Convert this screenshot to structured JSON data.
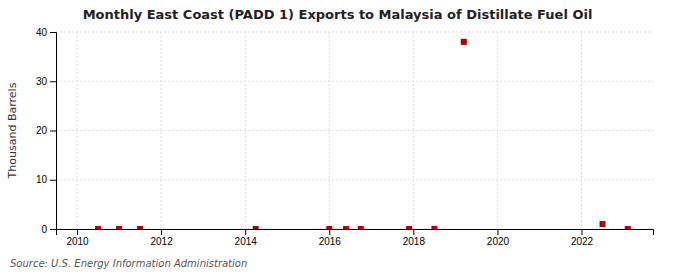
{
  "chart_data": {
    "type": "scatter",
    "title": "Monthly East Coast (PADD 1) Exports to Malaysia of Distillate Fuel Oil",
    "ylabel": "Thousand Barrels",
    "source": "Source: U.S. Energy Information Administration",
    "x": [
      2010.5,
      2011.0,
      2011.5,
      2014.25,
      2016.0,
      2016.4,
      2016.75,
      2017.9,
      2018.5,
      2019.2,
      2022.5,
      2023.1
    ],
    "values": [
      0,
      0,
      0,
      0,
      0,
      0,
      0,
      0,
      0,
      38,
      1,
      0
    ],
    "color": "#aa0000",
    "marker": "square",
    "xlim": [
      2009.5,
      2023.7
    ],
    "ylim": [
      0,
      40
    ],
    "xticks": [
      2010,
      2012,
      2014,
      2016,
      2018,
      2020,
      2022
    ],
    "yticks": [
      0,
      10,
      20,
      30,
      40
    ],
    "grid": true
  }
}
